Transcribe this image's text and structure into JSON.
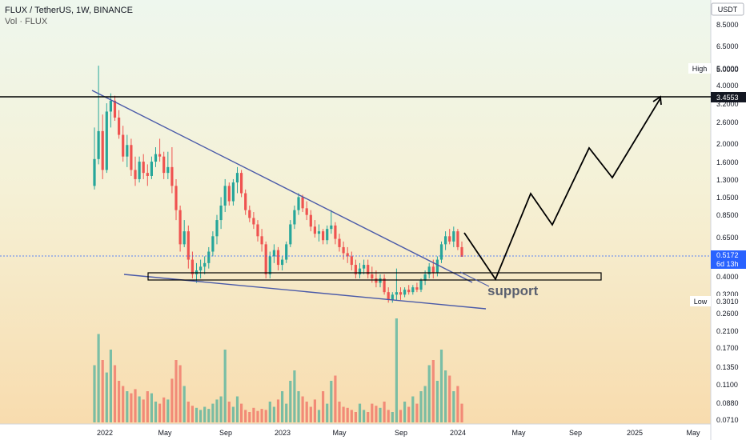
{
  "header": {
    "symbol_line": "FLUX / TetherUS, 1W, BINANCE",
    "volume_line": "Vol · FLUX",
    "currency_button": "USDT"
  },
  "price_scale": {
    "ticks": [
      "8.5000",
      "6.5000",
      "5.0000",
      "4.0000",
      "3.2000",
      "2.6000",
      "2.0000",
      "1.6000",
      "1.3000",
      "1.0500",
      "0.8500",
      "0.6500",
      "0.4000",
      "0.3200",
      "0.2600",
      "0.2100",
      "0.1700",
      "0.1350",
      "0.1100",
      "0.0880",
      "0.0710"
    ],
    "high_label": "High",
    "high_value": "5.0000",
    "low_label": "Low",
    "low_value": "0.3010",
    "level_value": "3.4553",
    "current_value": "0.5172",
    "countdown": "6d 13h"
  },
  "time_axis": {
    "labels": [
      "2022",
      "May",
      "Sep",
      "2023",
      "May",
      "Sep",
      "2024",
      "May",
      "Sep",
      "2025",
      "May"
    ]
  },
  "annotation": {
    "support_text": "support"
  },
  "colors": {
    "up": "#26a69a",
    "down": "#ef5350",
    "trendline": "#4a5aa8",
    "current_price": "#2962ff",
    "bg_top": "#eef7ee",
    "bg_bottom": "#f8dcae"
  },
  "chart_data": {
    "type": "candlestick",
    "scale": "log",
    "x_axis_dates": [
      "2022",
      "May",
      "Sep",
      "2023",
      "May",
      "Sep",
      "2024",
      "May",
      "Sep",
      "2025",
      "May"
    ],
    "price_high": 5.0,
    "price_low": 0.301,
    "resistance_level": 3.4553,
    "last_price": 0.5172,
    "support_zone": [
      0.38,
      0.42
    ],
    "ohlc": [
      [
        1.2,
        2.4,
        1.15,
        1.65
      ],
      [
        1.65,
        5.0,
        1.55,
        2.3
      ],
      [
        2.3,
        2.8,
        1.3,
        1.45
      ],
      [
        1.45,
        3.2,
        1.4,
        2.9
      ],
      [
        2.9,
        3.6,
        2.4,
        3.3
      ],
      [
        3.3,
        3.5,
        2.6,
        2.7
      ],
      [
        2.7,
        2.95,
        2.1,
        2.2
      ],
      [
        2.2,
        2.45,
        1.6,
        1.7
      ],
      [
        1.7,
        2.2,
        1.5,
        1.95
      ],
      [
        1.95,
        2.1,
        1.35,
        1.45
      ],
      [
        1.45,
        1.7,
        1.2,
        1.3
      ],
      [
        1.3,
        1.7,
        1.25,
        1.6
      ],
      [
        1.6,
        1.75,
        1.3,
        1.4
      ],
      [
        1.4,
        1.55,
        1.2,
        1.35
      ],
      [
        1.35,
        1.7,
        1.3,
        1.6
      ],
      [
        1.6,
        1.9,
        1.5,
        1.75
      ],
      [
        1.75,
        2.1,
        1.6,
        1.7
      ],
      [
        1.7,
        1.8,
        1.3,
        1.4
      ],
      [
        1.4,
        1.8,
        1.3,
        1.5
      ],
      [
        1.5,
        1.9,
        1.1,
        1.2
      ],
      [
        1.2,
        1.3,
        0.8,
        0.9
      ],
      [
        0.9,
        0.95,
        0.55,
        0.6
      ],
      [
        0.6,
        0.8,
        0.58,
        0.7
      ],
      [
        0.7,
        0.75,
        0.45,
        0.5
      ],
      [
        0.5,
        0.55,
        0.4,
        0.42
      ],
      [
        0.42,
        0.48,
        0.38,
        0.44
      ],
      [
        0.44,
        0.5,
        0.4,
        0.46
      ],
      [
        0.46,
        0.52,
        0.42,
        0.48
      ],
      [
        0.48,
        0.58,
        0.45,
        0.55
      ],
      [
        0.55,
        0.7,
        0.52,
        0.66
      ],
      [
        0.66,
        0.85,
        0.6,
        0.8
      ],
      [
        0.8,
        1.05,
        0.72,
        0.95
      ],
      [
        0.95,
        1.3,
        0.88,
        1.2
      ],
      [
        1.2,
        1.25,
        0.95,
        1.0
      ],
      [
        1.0,
        1.3,
        0.95,
        1.25
      ],
      [
        1.25,
        1.5,
        1.1,
        1.4
      ],
      [
        1.4,
        1.45,
        1.05,
        1.1
      ],
      [
        1.1,
        1.15,
        0.85,
        0.9
      ],
      [
        0.9,
        0.95,
        0.78,
        0.82
      ],
      [
        0.82,
        0.88,
        0.72,
        0.76
      ],
      [
        0.76,
        0.8,
        0.62,
        0.66
      ],
      [
        0.66,
        0.72,
        0.55,
        0.6
      ],
      [
        0.6,
        0.62,
        0.4,
        0.42
      ],
      [
        0.42,
        0.55,
        0.4,
        0.52
      ],
      [
        0.52,
        0.6,
        0.48,
        0.56
      ],
      [
        0.56,
        0.58,
        0.44,
        0.47
      ],
      [
        0.47,
        0.52,
        0.44,
        0.5
      ],
      [
        0.5,
        0.62,
        0.48,
        0.6
      ],
      [
        0.6,
        0.8,
        0.58,
        0.76
      ],
      [
        0.76,
        0.95,
        0.72,
        0.9
      ],
      [
        0.9,
        1.1,
        0.85,
        1.05
      ],
      [
        1.05,
        1.08,
        0.88,
        0.92
      ],
      [
        0.92,
        1.0,
        0.8,
        0.85
      ],
      [
        0.85,
        0.9,
        0.7,
        0.74
      ],
      [
        0.74,
        0.8,
        0.65,
        0.68
      ],
      [
        0.68,
        0.76,
        0.62,
        0.7
      ],
      [
        0.7,
        0.72,
        0.6,
        0.63
      ],
      [
        0.63,
        0.75,
        0.6,
        0.72
      ],
      [
        0.72,
        0.9,
        0.68,
        0.75
      ],
      [
        0.75,
        0.78,
        0.6,
        0.64
      ],
      [
        0.64,
        0.68,
        0.55,
        0.58
      ],
      [
        0.58,
        0.62,
        0.5,
        0.54
      ],
      [
        0.54,
        0.58,
        0.48,
        0.52
      ],
      [
        0.52,
        0.55,
        0.44,
        0.47
      ],
      [
        0.47,
        0.5,
        0.4,
        0.42
      ],
      [
        0.42,
        0.48,
        0.4,
        0.45
      ],
      [
        0.45,
        0.5,
        0.42,
        0.47
      ],
      [
        0.47,
        0.5,
        0.4,
        0.42
      ],
      [
        0.42,
        0.46,
        0.38,
        0.4
      ],
      [
        0.4,
        0.44,
        0.36,
        0.38
      ],
      [
        0.38,
        0.42,
        0.36,
        0.4
      ],
      [
        0.4,
        0.42,
        0.33,
        0.34
      ],
      [
        0.34,
        0.36,
        0.3,
        0.31
      ],
      [
        0.31,
        0.34,
        0.3,
        0.33
      ],
      [
        0.33,
        0.45,
        0.31,
        0.34
      ],
      [
        0.34,
        0.36,
        0.31,
        0.33
      ],
      [
        0.33,
        0.36,
        0.32,
        0.35
      ],
      [
        0.35,
        0.37,
        0.33,
        0.34
      ],
      [
        0.34,
        0.37,
        0.33,
        0.36
      ],
      [
        0.36,
        0.38,
        0.34,
        0.35
      ],
      [
        0.35,
        0.4,
        0.34,
        0.39
      ],
      [
        0.39,
        0.44,
        0.37,
        0.42
      ],
      [
        0.42,
        0.48,
        0.4,
        0.46
      ],
      [
        0.46,
        0.5,
        0.4,
        0.43
      ],
      [
        0.43,
        0.52,
        0.41,
        0.5
      ],
      [
        0.5,
        0.62,
        0.48,
        0.6
      ],
      [
        0.6,
        0.7,
        0.56,
        0.66
      ],
      [
        0.66,
        0.72,
        0.6,
        0.62
      ],
      [
        0.62,
        0.74,
        0.58,
        0.7
      ],
      [
        0.7,
        0.72,
        0.56,
        0.58
      ],
      [
        0.58,
        0.62,
        0.52,
        0.5172
      ]
    ],
    "volume": [
      0.55,
      0.85,
      0.6,
      0.48,
      0.7,
      0.55,
      0.4,
      0.35,
      0.3,
      0.28,
      0.32,
      0.25,
      0.22,
      0.3,
      0.28,
      0.2,
      0.18,
      0.24,
      0.22,
      0.42,
      0.6,
      0.55,
      0.35,
      0.2,
      0.16,
      0.14,
      0.12,
      0.15,
      0.13,
      0.18,
      0.22,
      0.25,
      0.7,
      0.2,
      0.15,
      0.25,
      0.18,
      0.12,
      0.1,
      0.14,
      0.11,
      0.13,
      0.12,
      0.2,
      0.15,
      0.22,
      0.3,
      0.18,
      0.4,
      0.5,
      0.3,
      0.25,
      0.2,
      0.15,
      0.22,
      0.12,
      0.3,
      0.18,
      0.4,
      0.45,
      0.2,
      0.15,
      0.14,
      0.12,
      0.1,
      0.18,
      0.12,
      0.1,
      0.18,
      0.16,
      0.14,
      0.2,
      0.12,
      0.1,
      1.0,
      0.12,
      0.2,
      0.15,
      0.25,
      0.18,
      0.3,
      0.35,
      0.55,
      0.6,
      0.4,
      0.7,
      0.5,
      0.45,
      0.3,
      0.35,
      0.18
    ]
  }
}
